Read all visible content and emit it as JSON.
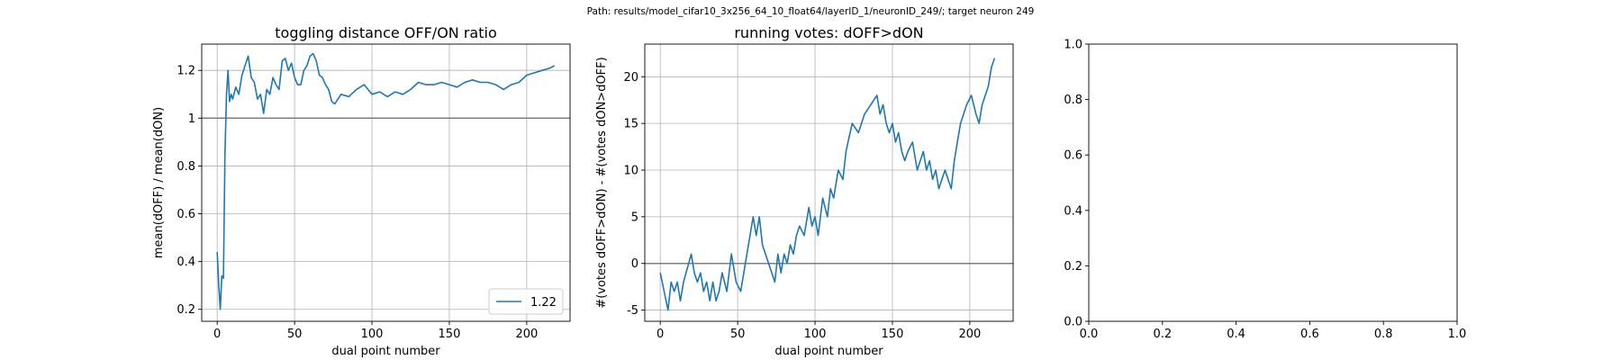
{
  "suptitle": "Path: results/model_cifar10_3x256_64_10_float64/layerID_1/neuronID_249/; target neuron 249",
  "chart_data": [
    {
      "type": "line",
      "title": "toggling distance OFF/ON ratio",
      "xlabel": "dual point number",
      "ylabel": "mean(dOFF) / mean(dON)",
      "xlim": [
        -10,
        228
      ],
      "ylim": [
        0.15,
        1.31
      ],
      "xticks": [
        0,
        50,
        100,
        150,
        200
      ],
      "yticks": [
        0.2,
        0.4,
        0.6,
        0.8,
        1.0,
        1.2
      ],
      "grid": true,
      "reference_line": 1.0,
      "legend": {
        "placement": "lower-right",
        "label": "1.22"
      },
      "series": [
        {
          "name": "1.22",
          "color": "#1f77b4",
          "x": [
            0,
            1,
            2,
            3,
            4,
            5,
            6,
            7,
            8,
            9,
            10,
            12,
            14,
            16,
            18,
            20,
            22,
            24,
            26,
            28,
            30,
            32,
            34,
            36,
            38,
            40,
            42,
            44,
            46,
            48,
            50,
            52,
            54,
            56,
            58,
            60,
            62,
            64,
            66,
            68,
            70,
            72,
            74,
            76,
            78,
            80,
            85,
            90,
            95,
            100,
            105,
            110,
            115,
            120,
            125,
            130,
            135,
            140,
            145,
            150,
            155,
            160,
            165,
            170,
            175,
            180,
            185,
            190,
            195,
            200,
            205,
            210,
            215,
            218
          ],
          "y": [
            0.44,
            0.3,
            0.2,
            0.34,
            0.33,
            0.85,
            1.1,
            1.2,
            1.07,
            1.1,
            1.08,
            1.13,
            1.1,
            1.18,
            1.22,
            1.26,
            1.17,
            1.15,
            1.08,
            1.1,
            1.02,
            1.12,
            1.1,
            1.17,
            1.14,
            1.12,
            1.24,
            1.25,
            1.2,
            1.23,
            1.17,
            1.14,
            1.14,
            1.2,
            1.22,
            1.26,
            1.27,
            1.24,
            1.18,
            1.17,
            1.14,
            1.12,
            1.07,
            1.06,
            1.08,
            1.1,
            1.09,
            1.12,
            1.14,
            1.1,
            1.11,
            1.09,
            1.11,
            1.1,
            1.12,
            1.15,
            1.14,
            1.14,
            1.15,
            1.14,
            1.13,
            1.15,
            1.16,
            1.15,
            1.15,
            1.14,
            1.12,
            1.14,
            1.15,
            1.18,
            1.19,
            1.2,
            1.21,
            1.22
          ]
        }
      ]
    },
    {
      "type": "line",
      "title": "running votes: dOFF>dON",
      "xlabel": "dual point number",
      "ylabel": "#(votes dOFF>dON) - #(votes dON>dOFF)",
      "xlim": [
        -10,
        228
      ],
      "ylim": [
        -6.2,
        23.5
      ],
      "xticks": [
        0,
        50,
        100,
        150,
        200
      ],
      "yticks": [
        -5,
        0,
        5,
        10,
        15,
        20
      ],
      "grid": true,
      "reference_line": 0,
      "series": [
        {
          "name": "",
          "color": "#1f77b4",
          "x": [
            0,
            5,
            7,
            9,
            11,
            13,
            15,
            20,
            22,
            24,
            26,
            28,
            30,
            32,
            34,
            36,
            38,
            40,
            43,
            46,
            49,
            52,
            56,
            60,
            62,
            64,
            66,
            70,
            74,
            76,
            78,
            80,
            82,
            84,
            86,
            88,
            90,
            93,
            96,
            98,
            100,
            102,
            105,
            108,
            110,
            112,
            115,
            118,
            120,
            124,
            128,
            132,
            136,
            140,
            142,
            144,
            146,
            148,
            150,
            152,
            154,
            156,
            158,
            160,
            163,
            166,
            168,
            170,
            172,
            174,
            176,
            178,
            180,
            182,
            184,
            186,
            188,
            190,
            192,
            194,
            196,
            198,
            201,
            204,
            206,
            208,
            210,
            212,
            214,
            216
          ],
          "y": [
            -1,
            -5,
            -2,
            -3,
            -2,
            -4,
            -2,
            1,
            -1,
            -2,
            -1,
            -3,
            -2,
            -4,
            -2,
            -4,
            -3,
            -1,
            -3,
            1,
            -2,
            -3,
            1,
            5,
            3,
            5,
            2,
            0,
            -2,
            1,
            -1,
            1,
            0,
            2,
            1,
            3,
            4,
            3,
            6,
            4,
            5,
            3,
            7,
            5,
            8,
            7,
            10,
            9,
            12,
            15,
            14,
            16,
            17,
            18,
            16,
            17,
            15,
            14,
            15,
            13,
            14,
            12,
            11,
            12,
            13,
            10,
            11,
            12,
            10,
            11,
            9,
            10,
            8,
            9,
            10,
            9,
            8,
            11,
            13,
            15,
            16,
            17,
            18,
            16,
            15,
            17,
            18,
            19,
            21,
            22
          ]
        }
      ]
    },
    {
      "type": "line",
      "title": "",
      "xlabel": "",
      "ylabel": "",
      "xlim": [
        0,
        1
      ],
      "ylim": [
        0,
        1
      ],
      "xticks": [
        0.0,
        0.2,
        0.4,
        0.6,
        0.8,
        1.0
      ],
      "yticks": [
        0.0,
        0.2,
        0.4,
        0.6,
        0.8,
        1.0
      ],
      "tick_decimals": 1,
      "grid": false,
      "series": []
    }
  ]
}
